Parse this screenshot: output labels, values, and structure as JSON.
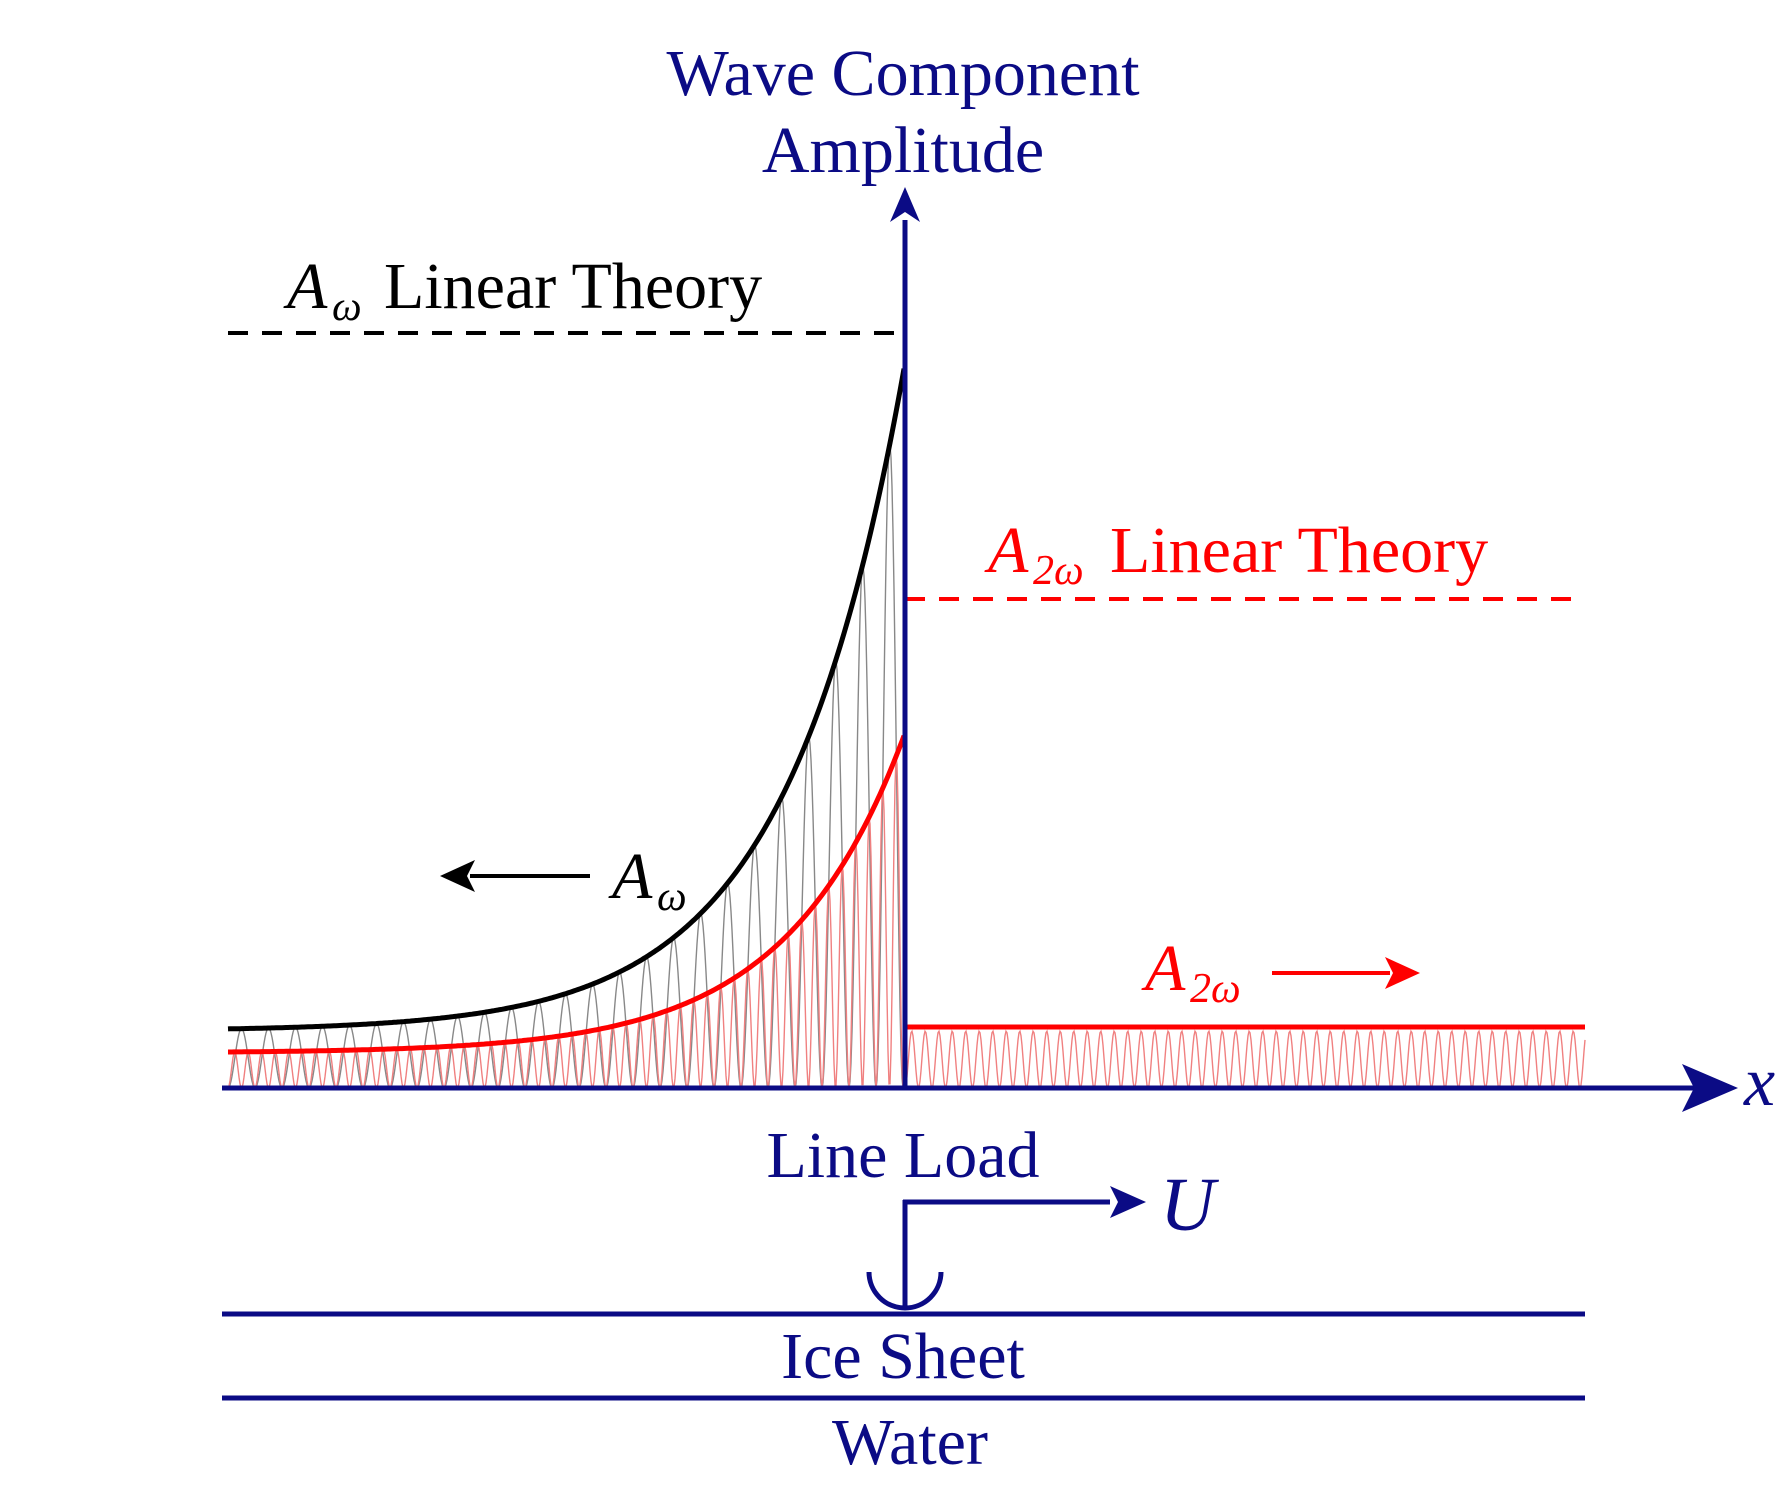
{
  "colors": {
    "axis": "#0b0b85",
    "black_curve": "#000000",
    "red_curve": "#ff0000",
    "black_oscillation": "#888888",
    "red_oscillation": "#f08080"
  },
  "labels": {
    "y_axis_line1": "Wave Component",
    "y_axis_line2": "Amplitude",
    "x_axis": "x",
    "a_omega_linear_sym": "A",
    "a_omega_linear_sub": "ω",
    "a_omega_linear_text": "Linear Theory",
    "a_2omega_linear_sym": "A",
    "a_2omega_linear_sub": "2ω",
    "a_2omega_linear_text": "Linear Theory",
    "a_omega_sym": "A",
    "a_omega_sub": "ω",
    "a_2omega_sym": "A",
    "a_2omega_sub": "2ω",
    "line_load": "Line Load",
    "velocity": "U",
    "ice_sheet": "Ice Sheet",
    "water": "Water"
  }
}
